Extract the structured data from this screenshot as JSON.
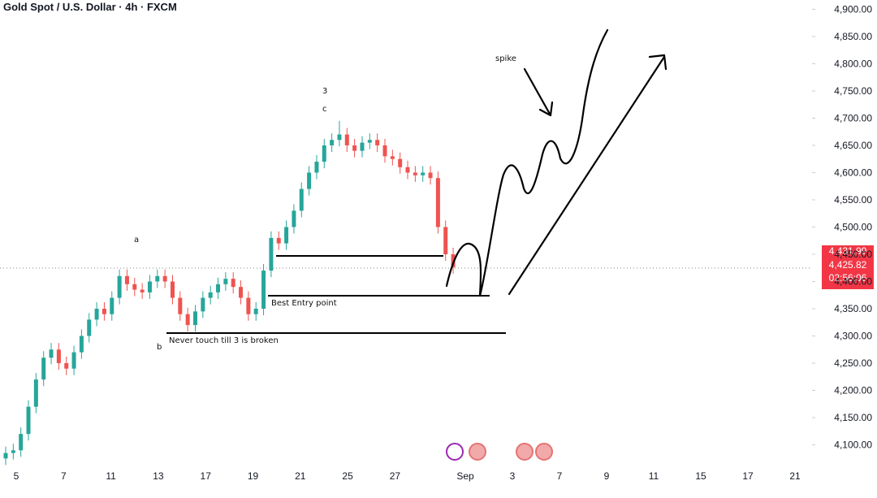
{
  "chart_data": {
    "type": "candlestick",
    "title": "Gold Spot / U.S. Dollar · 4h · FXCM",
    "up_color": "#26a69a",
    "down_color": "#ef5350",
    "open": [
      4075,
      4085,
      4090,
      4120,
      4170,
      4220,
      4260,
      4275,
      4250,
      4240,
      4270,
      4300,
      4330,
      4350,
      4340,
      4370,
      4410,
      4395,
      4385,
      4380,
      4400,
      4410,
      4400,
      4370,
      4340,
      4320,
      4345,
      4370,
      4380,
      4395,
      4405,
      4390,
      4370,
      4340,
      4350,
      4420,
      4480,
      4470,
      4500,
      4530,
      4570,
      4600,
      4620,
      4650,
      4660,
      4670,
      4650,
      4640,
      4655,
      4660,
      4650,
      4630,
      4625,
      4610,
      4600,
      4595,
      4600,
      4590,
      4500,
      4450
    ],
    "high": [
      4097,
      4102,
      4132,
      4182,
      4232,
      4272,
      4287,
      4287,
      4262,
      4282,
      4312,
      4342,
      4362,
      4362,
      4382,
      4422,
      4422,
      4407,
      4397,
      4412,
      4422,
      4422,
      4412,
      4382,
      4352,
      4357,
      4382,
      4392,
      4407,
      4417,
      4417,
      4402,
      4382,
      4362,
      4432,
      4492,
      4492,
      4512,
      4542,
      4582,
      4612,
      4632,
      4662,
      4672,
      4695,
      4682,
      4662,
      4667,
      4672,
      4672,
      4662,
      4642,
      4637,
      4622,
      4612,
      4612,
      4612,
      4602,
      4512,
      4462
    ],
    "low": [
      4063,
      4073,
      4078,
      4108,
      4158,
      4208,
      4248,
      4238,
      4228,
      4228,
      4258,
      4288,
      4318,
      4328,
      4328,
      4358,
      4383,
      4373,
      4368,
      4368,
      4388,
      4388,
      4358,
      4328,
      4308,
      4308,
      4333,
      4358,
      4368,
      4383,
      4378,
      4358,
      4328,
      4328,
      4338,
      4408,
      4458,
      4458,
      4488,
      4518,
      4558,
      4588,
      4608,
      4638,
      4648,
      4638,
      4628,
      4628,
      4643,
      4638,
      4618,
      4613,
      4598,
      4588,
      4583,
      4583,
      4578,
      4488,
      4438,
      4414
    ],
    "close": [
      4085,
      4090,
      4120,
      4170,
      4220,
      4260,
      4275,
      4250,
      4240,
      4270,
      4300,
      4330,
      4350,
      4340,
      4370,
      4410,
      4395,
      4385,
      4380,
      4400,
      4410,
      4400,
      4370,
      4340,
      4320,
      4345,
      4370,
      4380,
      4395,
      4405,
      4390,
      4370,
      4340,
      4350,
      4420,
      4480,
      4470,
      4500,
      4530,
      4570,
      4600,
      4620,
      4650,
      4660,
      4670,
      4650,
      4640,
      4655,
      4660,
      4650,
      4630,
      4625,
      4610,
      4600,
      4595,
      4600,
      4590,
      4500,
      4450,
      4426
    ],
    "ylim": [
      4071,
      4917
    ],
    "yticks": [
      {
        "value": 4100,
        "label": "4,100.00"
      },
      {
        "value": 4150,
        "label": "4,150.00"
      },
      {
        "value": 4200,
        "label": "4,200.00"
      },
      {
        "value": 4250,
        "label": "4,250.00"
      },
      {
        "value": 4300,
        "label": "4,300.00"
      },
      {
        "value": 4350,
        "label": "4,350.00"
      },
      {
        "value": 4400,
        "label": "4,400.00"
      },
      {
        "value": 4450,
        "label": "4,450.00"
      },
      {
        "value": 4500,
        "label": "4,500.00"
      },
      {
        "value": 4550,
        "label": "4,550.00"
      },
      {
        "value": 4600,
        "label": "4,600.00"
      },
      {
        "value": 4650,
        "label": "4,650.00"
      },
      {
        "value": 4700,
        "label": "4,700.00"
      },
      {
        "value": 4750,
        "label": "4,750.00"
      },
      {
        "value": 4800,
        "label": "4,800.00"
      },
      {
        "value": 4850,
        "label": "4,850.00"
      },
      {
        "value": 4900,
        "label": "4,900.00"
      }
    ],
    "x_labels": [
      "5",
      "7",
      "11",
      "13",
      "17",
      "19",
      "21",
      "25",
      "27",
      "Sep",
      "3",
      "7",
      "9",
      "11",
      "15",
      "17",
      "21"
    ],
    "price_tags": [
      "4,431.99",
      "4,425.82",
      "02:56:06"
    ],
    "annotations": [
      "a",
      "b",
      "3",
      "c",
      "spike",
      "Best Entry point",
      "Never touch till 3 is broken"
    ]
  }
}
